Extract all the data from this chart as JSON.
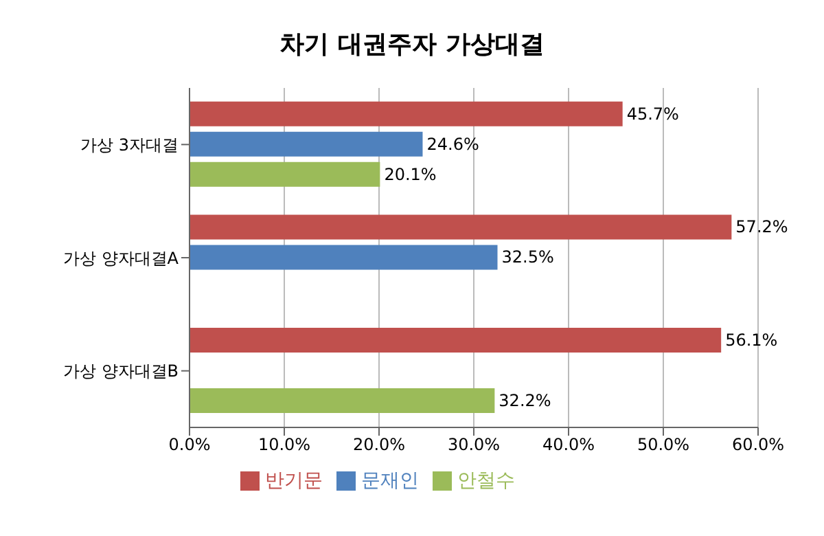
{
  "chart_data": {
    "type": "bar",
    "orientation": "horizontal",
    "title": "차기 대권주자 가상대결",
    "categories": [
      "가상 3자대결",
      "가상 양자대결A",
      "가상 양자대결B"
    ],
    "series": [
      {
        "name": "반기문",
        "color": "#c0504d",
        "values": [
          45.7,
          57.2,
          56.1
        ],
        "value_labels": [
          "45.7%",
          "57.2%",
          "56.1%"
        ]
      },
      {
        "name": "문재인",
        "color": "#4f81bd",
        "values": [
          24.6,
          32.5,
          null
        ],
        "value_labels": [
          "24.6%",
          "32.5%",
          null
        ]
      },
      {
        "name": "안철수",
        "color": "#9bbb59",
        "values": [
          20.1,
          null,
          32.2
        ],
        "value_labels": [
          "20.1%",
          null,
          "32.2%"
        ]
      }
    ],
    "xlim": [
      0,
      60
    ],
    "xticks": [
      {
        "value": 0,
        "label": "0.0%"
      },
      {
        "value": 10,
        "label": "10.0%"
      },
      {
        "value": 20,
        "label": "20.0%"
      },
      {
        "value": 30,
        "label": "30.0%"
      },
      {
        "value": 40,
        "label": "40.0%"
      },
      {
        "value": 50,
        "label": "50.0%"
      },
      {
        "value": 60,
        "label": "60.0%"
      }
    ],
    "grid": "x",
    "legend": "bottom"
  }
}
